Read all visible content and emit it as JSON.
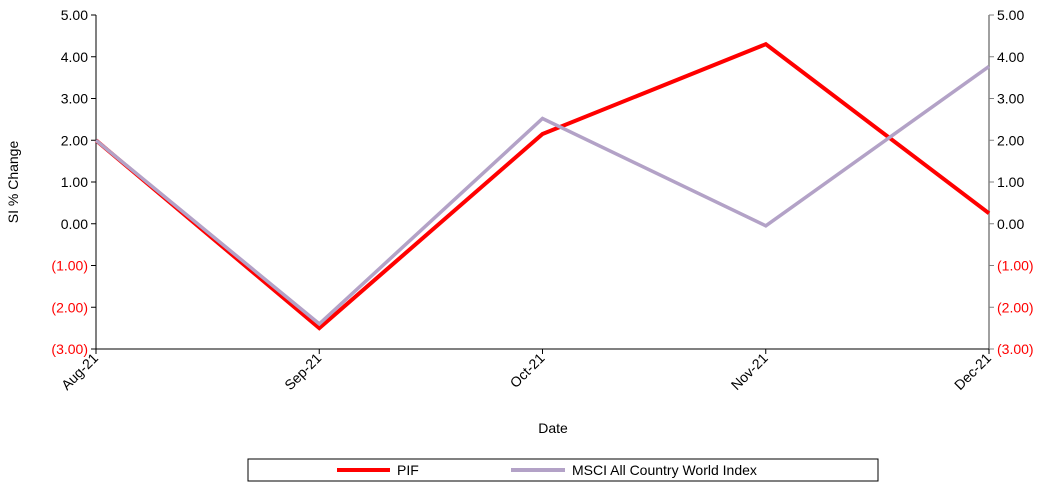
{
  "chart_data": {
    "type": "line",
    "title": "",
    "xlabel": "Date",
    "ylabel": "SI % Change",
    "categories": [
      "Aug-21",
      "Sep-21",
      "Oct-21",
      "Nov-21",
      "Dec-21"
    ],
    "ylim": [
      -3,
      5
    ],
    "yticks": [
      5,
      4,
      3,
      2,
      1,
      0,
      -1,
      -2,
      -3
    ],
    "ytick_labels": [
      "5.00",
      "4.00",
      "3.00",
      "2.00",
      "1.00",
      "0.00",
      "(1.00)",
      "(2.00)",
      "(3.00)"
    ],
    "negative_tick_color": "#ff0000",
    "secondary_axis": true,
    "grid": false,
    "legend_position": "bottom",
    "series": [
      {
        "name": "PIF",
        "color": "#ff0000",
        "values": [
          2.0,
          -2.5,
          2.15,
          4.3,
          0.25
        ]
      },
      {
        "name": "MSCI All Country World Index",
        "color": "#b3a2c7",
        "values": [
          2.0,
          -2.4,
          2.52,
          -0.05,
          3.77
        ]
      }
    ]
  }
}
